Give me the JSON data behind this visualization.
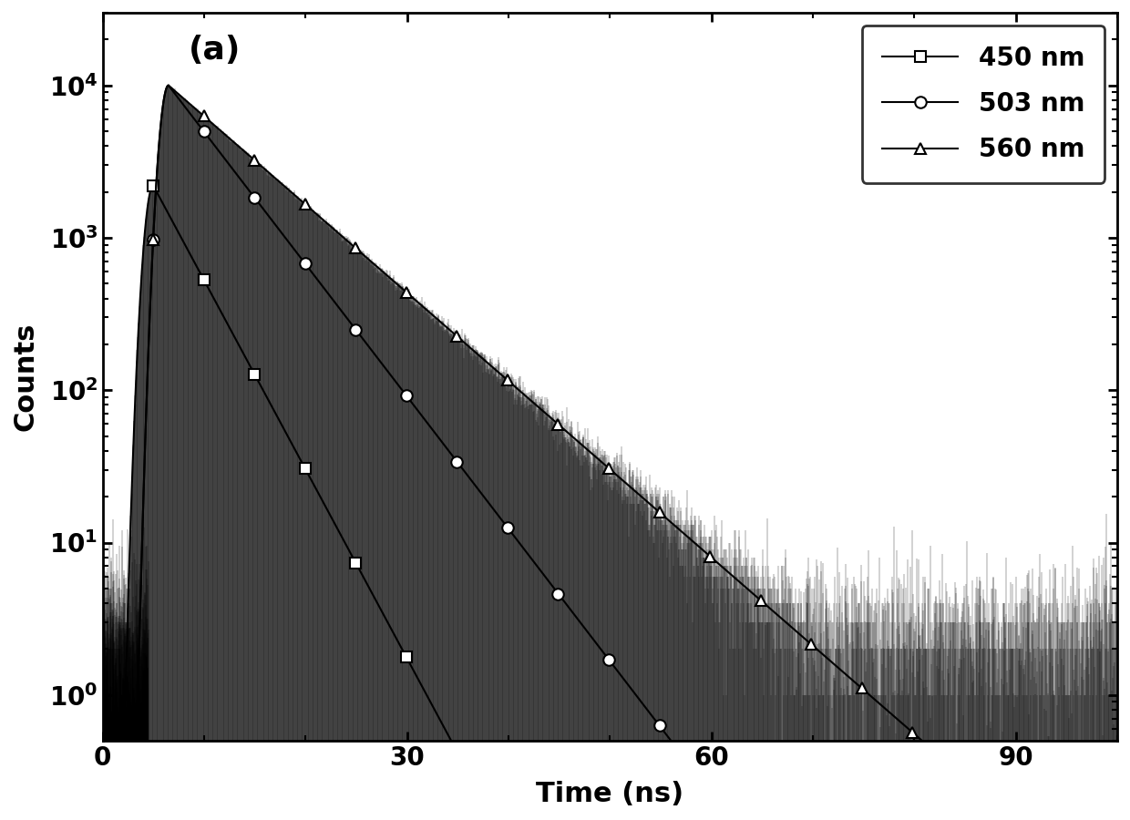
{
  "title": "(a)",
  "xlabel": "Time (ns)",
  "ylabel": "Counts",
  "xlim": [
    0,
    100
  ],
  "ylim_log": [
    0.5,
    30000
  ],
  "series": [
    {
      "label": "450 nm",
      "marker": "s",
      "peak_time": 5.0,
      "peak_val": 2200,
      "tau": 3.5,
      "rise_sigma": 0.7
    },
    {
      "label": "503 nm",
      "marker": "o",
      "peak_time": 6.5,
      "peak_val": 10000,
      "tau": 5.0,
      "rise_sigma": 0.7
    },
    {
      "label": "560 nm",
      "marker": "^",
      "peak_time": 6.5,
      "peak_val": 10000,
      "tau": 7.5,
      "rise_sigma": 0.7
    }
  ],
  "noise_floor": 1.8,
  "line_color": "black",
  "xticks": [
    0,
    30,
    60,
    90
  ],
  "markersize": 9,
  "markevery_ns": 5.0
}
